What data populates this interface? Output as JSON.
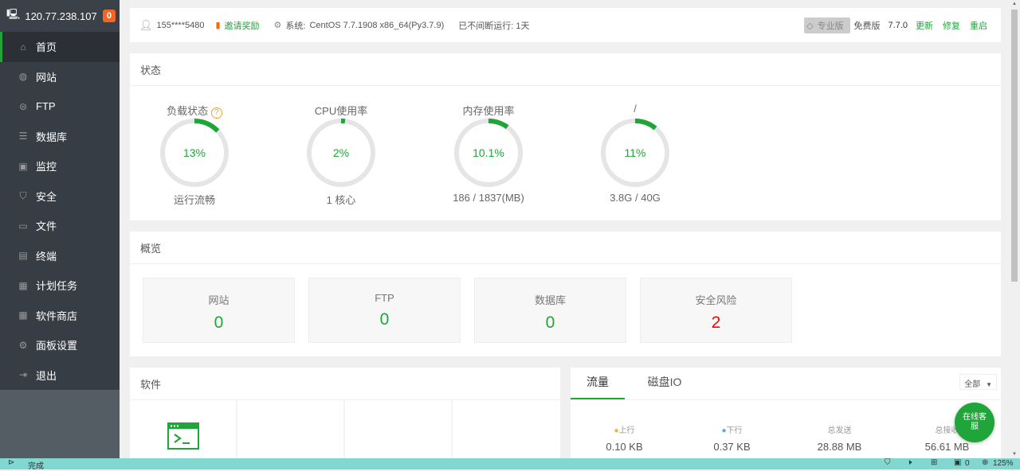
{
  "sidebar": {
    "ip": "120.77.238.107",
    "badge": "0",
    "items": [
      {
        "label": "首页",
        "icon": "home-icon",
        "g": "⌂"
      },
      {
        "label": "网站",
        "icon": "globe-icon",
        "g": "◍"
      },
      {
        "label": "FTP",
        "icon": "ftp-icon",
        "g": "⊜"
      },
      {
        "label": "数据库",
        "icon": "database-icon",
        "g": "☰"
      },
      {
        "label": "监控",
        "icon": "monitor-icon",
        "g": "▣"
      },
      {
        "label": "安全",
        "icon": "shield-icon",
        "g": "⛉"
      },
      {
        "label": "文件",
        "icon": "folder-icon",
        "g": "▭"
      },
      {
        "label": "终端",
        "icon": "terminal-icon",
        "g": "▤"
      },
      {
        "label": "计划任务",
        "icon": "calendar-icon",
        "g": "▦"
      },
      {
        "label": "软件商店",
        "icon": "apps-icon",
        "g": "▦"
      },
      {
        "label": "面板设置",
        "icon": "gear-icon",
        "g": "⚙"
      },
      {
        "label": "退出",
        "icon": "logout-icon",
        "g": "⇥"
      }
    ]
  },
  "header": {
    "user": "155****5480",
    "invite": "邀请奖励",
    "sys_label": "系统:",
    "sys": "CentOS 7.7.1908 x86_64(Py3.7.9)",
    "uptime": "已不间断运行: 1天",
    "pro": "专业版",
    "free": "免费版",
    "version": "7.7.0",
    "update": "更新",
    "repair": "修复",
    "restart": "重启"
  },
  "status": {
    "title": "状态",
    "gauges": [
      {
        "label": "负载状态",
        "value": "13%",
        "pct": 13,
        "sub": "运行流畅",
        "help": "?"
      },
      {
        "label": "CPU使用率",
        "value": "2%",
        "pct": 2,
        "sub": "1 核心"
      },
      {
        "label": "内存使用率",
        "value": "10.1%",
        "pct": 10.1,
        "sub": "186 / 1837(MB)"
      },
      {
        "label": "/",
        "value": "11%",
        "pct": 11,
        "sub": "3.8G / 40G"
      }
    ]
  },
  "overview": {
    "title": "概览",
    "items": [
      {
        "label": "网站",
        "value": "0"
      },
      {
        "label": "FTP",
        "value": "0"
      },
      {
        "label": "数据库",
        "value": "0"
      },
      {
        "label": "安全风险",
        "value": "2",
        "color": "#f00"
      }
    ]
  },
  "software": {
    "title": "软件"
  },
  "traffic": {
    "tabs": [
      "流量",
      "磁盘IO"
    ],
    "select": "全部",
    "up_label": "上行",
    "down_label": "下行",
    "sent_label": "总发送",
    "recv_label": "总接收",
    "up": "0.10 KB",
    "down": "0.37 KB",
    "sent": "28.88 MB",
    "recv": "56.61 MB"
  },
  "chat": "在线客服",
  "statusbar": {
    "left": "完成",
    "count": "0",
    "zoom": "125%"
  },
  "colors": {
    "accent": "#20a53a",
    "gauge_track": "#e5e5e5"
  }
}
